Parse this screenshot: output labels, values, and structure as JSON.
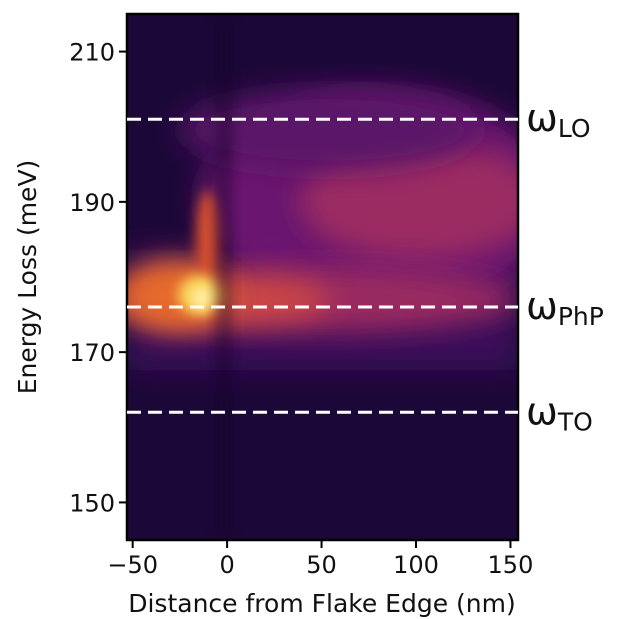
{
  "chart_data": {
    "type": "heatmap",
    "x_label": "Distance from Flake Edge (nm)",
    "y_label": "Energy Loss (meV)",
    "xlim": [
      -53,
      154
    ],
    "ylim": [
      145,
      215
    ],
    "xticks": [
      {
        "value": -50,
        "label": "−50"
      },
      0,
      50,
      100,
      150
    ],
    "yticks": [
      150,
      170,
      190,
      210
    ],
    "reference_lines": [
      {
        "value": 201,
        "symbol": "ω",
        "subscript": "LO",
        "color": "#ffffff"
      },
      {
        "value": 176,
        "symbol": "ω",
        "subscript": "PhP",
        "color": "#ffffff"
      },
      {
        "value": 162,
        "symbol": "ω",
        "subscript": "TO",
        "color": "#ffffff"
      }
    ],
    "colormap": "inferno"
  }
}
